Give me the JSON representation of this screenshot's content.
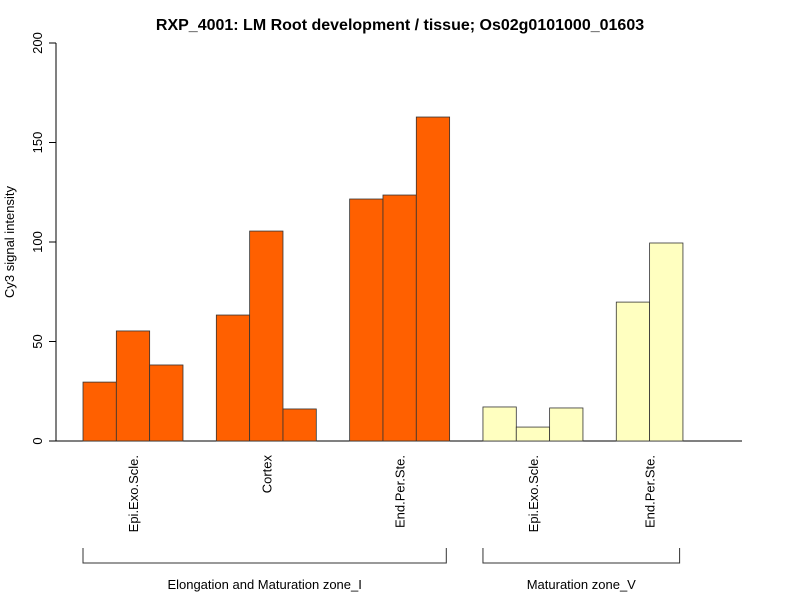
{
  "chart_data": {
    "type": "bar",
    "title": "RXP_4001: LM Root development / tissue; Os02g0101000_01603",
    "xlabel": "",
    "ylabel": "Cy3 signal intensity",
    "ylim": [
      0,
      200
    ],
    "yticks": [
      0,
      50,
      100,
      150,
      200
    ],
    "groups": [
      {
        "zone": "Elongation and Maturation zone_I",
        "category": "Epi.Exo.Scle.",
        "values": [
          29.6,
          55.3,
          38.2
        ],
        "color": "#FF6000"
      },
      {
        "zone": "Elongation and Maturation zone_I",
        "category": "Cortex",
        "values": [
          63.3,
          105.5,
          16.1
        ],
        "color": "#FF6000"
      },
      {
        "zone": "Elongation and Maturation zone_I",
        "category": "End.Per.Ste.",
        "values": [
          121.6,
          123.6,
          162.8
        ],
        "color": "#FF6000"
      },
      {
        "zone": "Maturation zone_V",
        "category": "Epi.Exo.Scle.",
        "values": [
          17.1,
          7.0,
          16.6
        ],
        "color": "#FFFFC0"
      },
      {
        "zone": "Maturation zone_V",
        "category": "End.Per.Ste.",
        "values": [
          69.8,
          99.5
        ],
        "color": "#FFFFC0"
      }
    ],
    "zones": [
      "Elongation and Maturation zone_I",
      "Maturation zone_V"
    ]
  }
}
